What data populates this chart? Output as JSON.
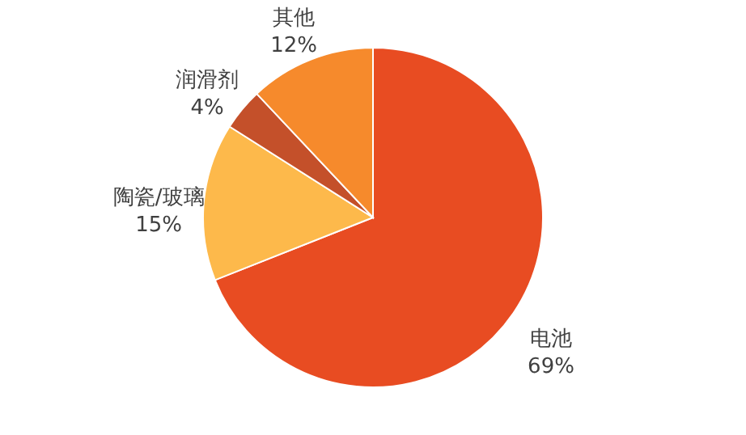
{
  "chart_data": {
    "type": "pie",
    "categories": [
      "电池",
      "陶瓷/玻璃",
      "润滑剂",
      "其他"
    ],
    "values": [
      69,
      15,
      4,
      12
    ],
    "colors": [
      "#e84c22",
      "#fdb94b",
      "#c4502a",
      "#f68a2c"
    ],
    "value_labels": [
      "69%",
      "15%",
      "4%",
      "12%"
    ],
    "legend": false
  }
}
